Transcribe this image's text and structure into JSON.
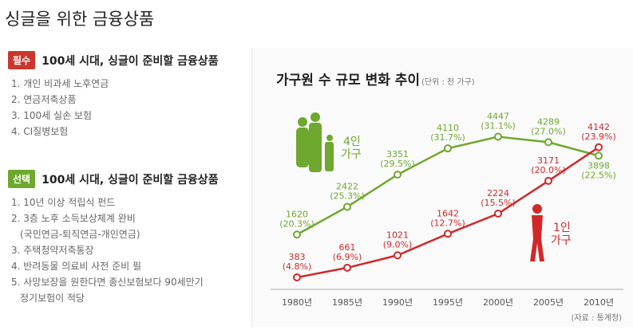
{
  "page_title": "싱글을 위한 금융상품",
  "sections": [
    {
      "badge": "필수",
      "badge_color": "#c8382d",
      "title": "100세 시대, 싱글이 준비할 금융상품",
      "items": [
        "1. 개인 비과세 노후연금",
        "2. 연금저축상품",
        "3. 100세 실손 보험",
        "4. CI질병보험"
      ]
    },
    {
      "badge": "선택",
      "badge_color": "#6fa82e",
      "title": "100세 시대, 싱글이 준비할 금융상품",
      "items": [
        "1. 10년 이상 적립식 펀드",
        "2. 3층 노후 소득보상체계 완비",
        "(국민연금-퇴직연금-개인연금)",
        "3. 주택청약저축통장",
        "4. 반려동물 의료비 사전 준비 필",
        "5. 사망보장을 원한다면 종신보험보다 90세만기",
        "정기보험이 적당"
      ]
    }
  ],
  "chart_data": {
    "type": "line",
    "title": "가구원 수 규모 변화 추이",
    "unit": "(단위 : 천 가구)",
    "source": "(자료 : 통계청)",
    "categories": [
      "1980년",
      "1985년",
      "1990년",
      "1995년",
      "2000년",
      "2005년",
      "2010년"
    ],
    "ylim": [
      0,
      5150
    ],
    "grid": false,
    "series": [
      {
        "name": "4인 가구",
        "name_lines": [
          "4인",
          "가구"
        ],
        "color": "#6fa82e",
        "values": [
          1620,
          2422,
          3351,
          4110,
          4447,
          4289,
          3898
        ],
        "labels": [
          "(20.3%)",
          "(25.3%)",
          "(29.5%)",
          "(31.7%)",
          "(31.1%)",
          "(27.0%)",
          "(22.5%)"
        ]
      },
      {
        "name": "1인 가구",
        "name_lines": [
          "1인",
          "가구"
        ],
        "color": "#d1292a",
        "values": [
          383,
          661,
          1021,
          1642,
          2224,
          3171,
          4142
        ],
        "labels": [
          "(4.8%)",
          "(6.9%)",
          "(9.0%)",
          "(12.7%)",
          "(15.5%)",
          "(20.0%)",
          "(23.9%)"
        ]
      }
    ]
  }
}
